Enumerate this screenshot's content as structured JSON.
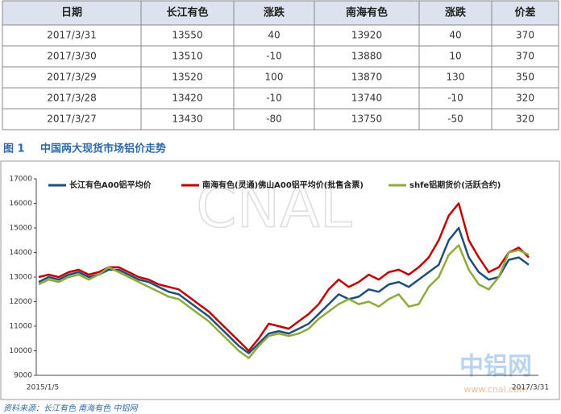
{
  "table": {
    "header": [
      "日期",
      "长江有色",
      "涨跌",
      "南海有色",
      "涨跌",
      "价差"
    ],
    "rows": [
      [
        "2017/3/31",
        "13550",
        "40",
        "13920",
        "40",
        "370"
      ],
      [
        "2017/3/30",
        "13510",
        "-10",
        "13880",
        "10",
        "370"
      ],
      [
        "2017/3/29",
        "13520",
        "100",
        "13870",
        "130",
        "350"
      ],
      [
        "2017/3/28",
        "13420",
        "-10",
        "13740",
        "-10",
        "320"
      ],
      [
        "2017/3/27",
        "13430",
        "-80",
        "13750",
        "-50",
        "320"
      ]
    ]
  },
  "figure": {
    "number": "图 1",
    "caption": "中国两大现货市场铝价走势"
  },
  "chart_data": {
    "type": "line",
    "x_labels": [
      "2015/1/5",
      "2017/3/31"
    ],
    "ylim": [
      9000,
      17000
    ],
    "yticks": [
      9000,
      10000,
      11000,
      12000,
      13000,
      14000,
      15000,
      16000,
      17000
    ],
    "series": [
      {
        "name": "长江有色A00铝平均价",
        "color": "#1f4e79",
        "values": [
          12800,
          13000,
          12900,
          13100,
          13200,
          13000,
          13100,
          13300,
          13300,
          13100,
          12900,
          12800,
          12600,
          12400,
          12300,
          12000,
          11700,
          11400,
          11000,
          10600,
          10200,
          9900,
          10300,
          10700,
          10800,
          10700,
          10900,
          11100,
          11500,
          11900,
          12300,
          12100,
          12200,
          12500,
          12400,
          12700,
          12800,
          12600,
          12900,
          13200,
          13500,
          14500,
          15000,
          13800,
          13200,
          12900,
          13000,
          13700,
          13800,
          13500
        ]
      },
      {
        "name": "南海有色(灵通)佛山A00铝平均价(批售含票)",
        "color": "#c00000",
        "values": [
          13000,
          13100,
          13000,
          13200,
          13300,
          13100,
          13200,
          13400,
          13400,
          13200,
          13000,
          12900,
          12700,
          12600,
          12500,
          12200,
          11900,
          11600,
          11200,
          10800,
          10400,
          10000,
          10500,
          11100,
          11000,
          10900,
          11200,
          11500,
          11900,
          12500,
          12900,
          12600,
          12800,
          13100,
          12900,
          13200,
          13300,
          13100,
          13400,
          13800,
          14500,
          15500,
          16000,
          14500,
          13800,
          13200,
          13400,
          14000,
          14200,
          13800
        ]
      },
      {
        "name": "shfe铝期货价(活跃合约)",
        "color": "#8faa3c",
        "values": [
          12700,
          12900,
          12800,
          13000,
          13100,
          12900,
          13100,
          13400,
          13200,
          13000,
          12800,
          12600,
          12400,
          12200,
          12100,
          11800,
          11500,
          11200,
          10800,
          10400,
          10000,
          9700,
          10200,
          10600,
          10700,
          10600,
          10700,
          10900,
          11300,
          11600,
          11900,
          12100,
          11900,
          12000,
          11800,
          12100,
          12300,
          11800,
          11900,
          12600,
          13000,
          13900,
          14300,
          13300,
          12700,
          12500,
          13000,
          14000,
          14100,
          13900
        ]
      }
    ],
    "watermarks": [
      "CNAL",
      "中铝网",
      "www.cnal.com"
    ]
  },
  "source": "资料来源：长江有色   南海有色   中铝网"
}
